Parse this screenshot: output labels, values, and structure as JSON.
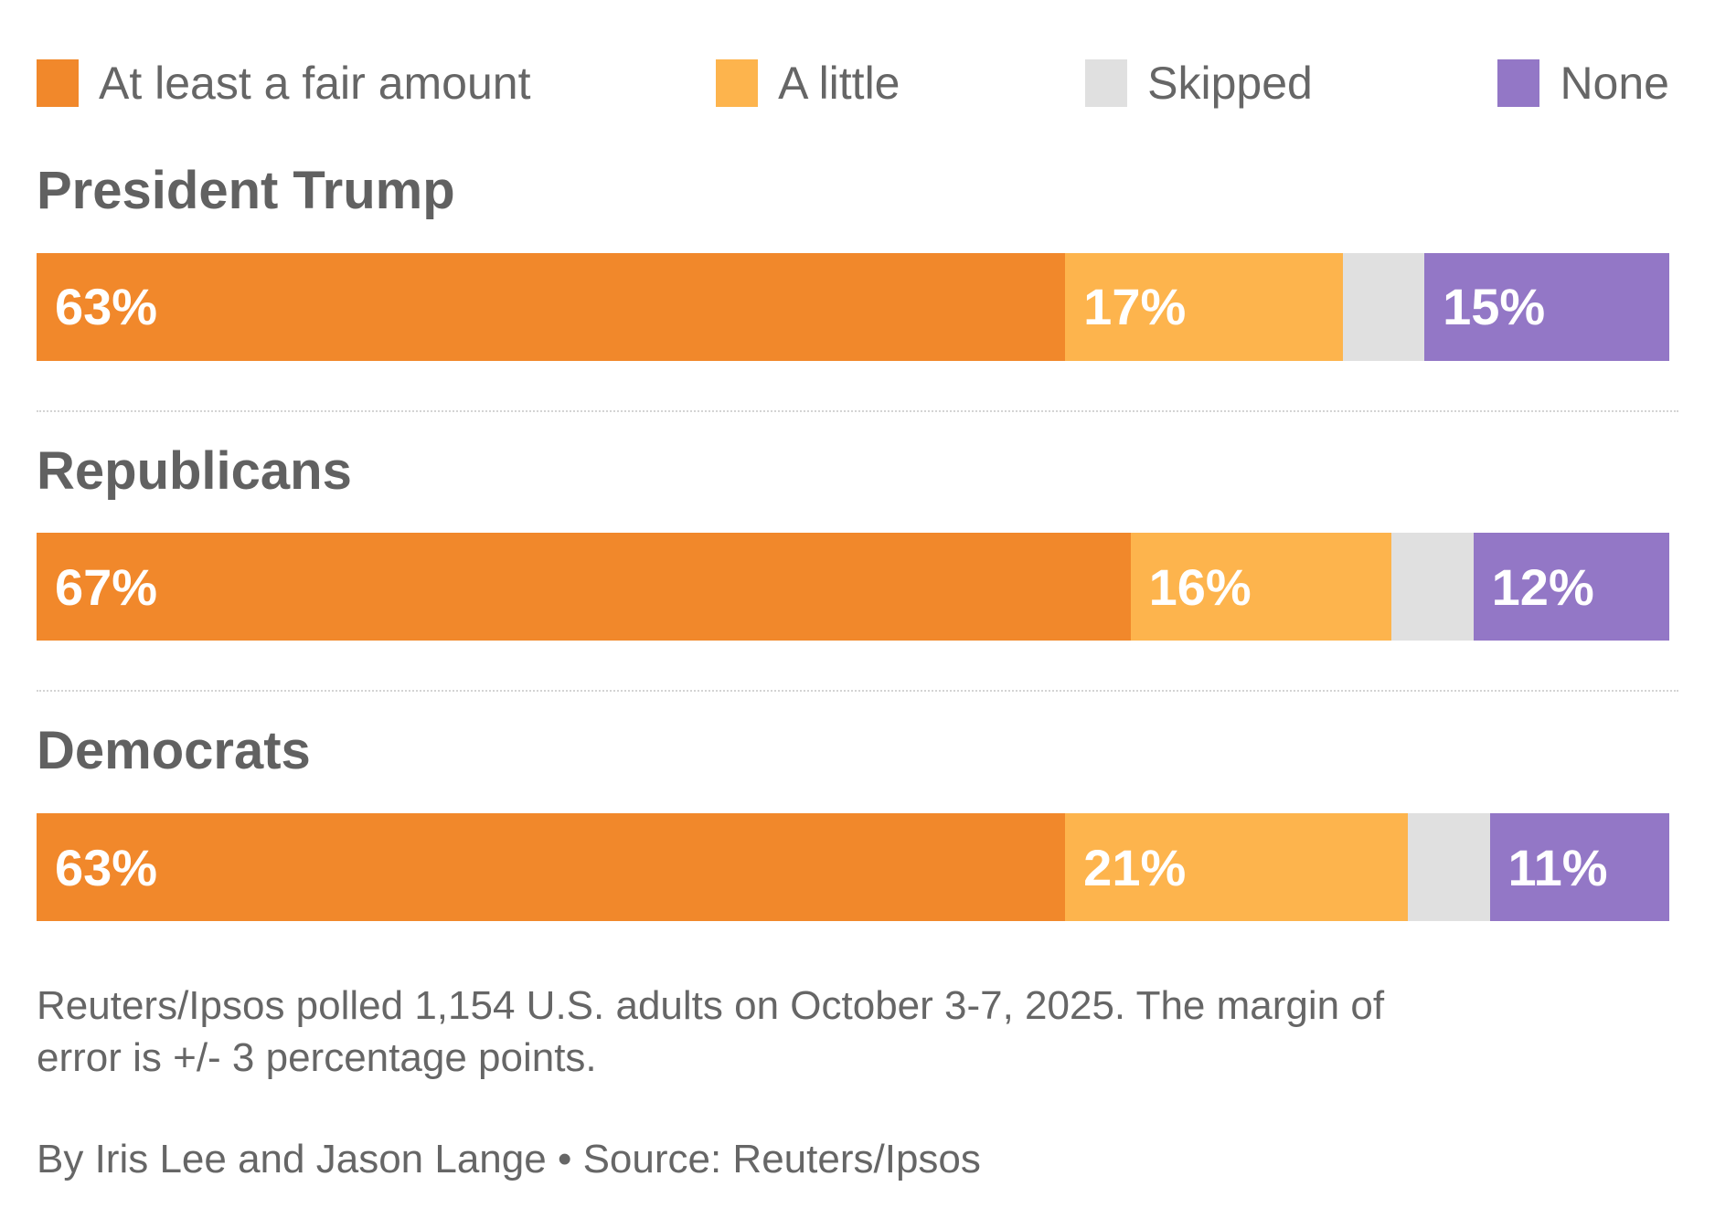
{
  "colors": {
    "at_least_fair": "#F1882B",
    "a_little": "#FDB44D",
    "skipped": "#E0E0E0",
    "none": "#9377C6",
    "heading_text": "#616161",
    "body_text": "#666666",
    "bar_label_text": "#FFFFFF"
  },
  "chart_data": {
    "type": "bar",
    "orientation": "horizontal",
    "stacked": true,
    "unit": "%",
    "xlim": [
      0,
      100
    ],
    "grid": false,
    "legend_position": "top",
    "categories": [
      "President Trump",
      "Republicans",
      "Democrats"
    ],
    "series": [
      {
        "name": "At least a fair amount",
        "color_key": "at_least_fair",
        "values": [
          63,
          67,
          63
        ],
        "show_label": true
      },
      {
        "name": "A little",
        "color_key": "a_little",
        "values": [
          17,
          16,
          21
        ],
        "show_label": true
      },
      {
        "name": "Skipped",
        "color_key": "skipped",
        "values": [
          5,
          5,
          5
        ],
        "show_label": false
      },
      {
        "name": "None",
        "color_key": "none",
        "values": [
          15,
          12,
          11
        ],
        "show_label": true
      }
    ],
    "bar_labels": [
      [
        "63%",
        "17%",
        "",
        "15%"
      ],
      [
        "67%",
        "16%",
        "",
        "12%"
      ],
      [
        "63%",
        "21%",
        "",
        "11%"
      ]
    ]
  },
  "footer": {
    "note": "Reuters/Ipsos polled 1,154 U.S. adults on October 3-7, 2025. The margin of error is +/- 3 percentage points.",
    "byline": "By Iris Lee and Jason Lange • Source: Reuters/Ipsos"
  }
}
